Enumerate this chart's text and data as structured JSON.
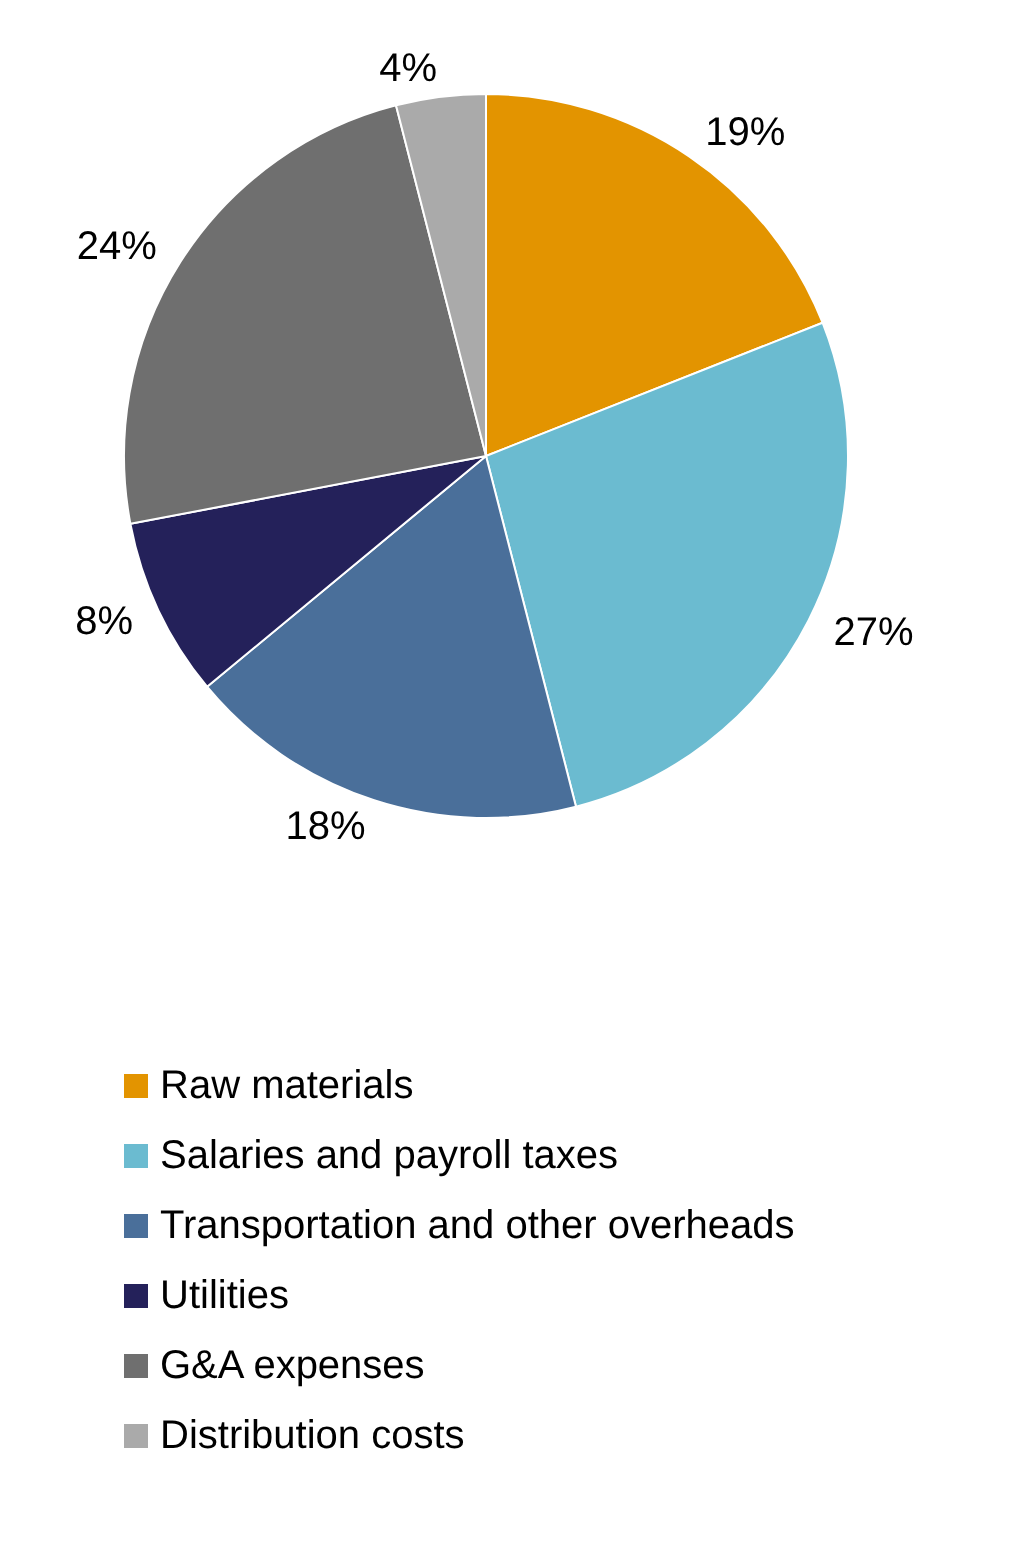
{
  "chart_data": {
    "type": "pie",
    "categories": [
      "Raw materials",
      "Salaries and payroll taxes",
      "Transportation and other overheads",
      "Utilities",
      "G&A expenses",
      "Distribution costs"
    ],
    "values": [
      19,
      27,
      18,
      8,
      24,
      4
    ],
    "colors": [
      "#e39400",
      "#6bbbd0",
      "#4a6f9a",
      "#24215a",
      "#6f6f6f",
      "#aaaaaa"
    ],
    "value_labels": [
      "19%",
      "27%",
      "18%",
      "8%",
      "24%",
      "4%"
    ],
    "legend": "bottom"
  }
}
